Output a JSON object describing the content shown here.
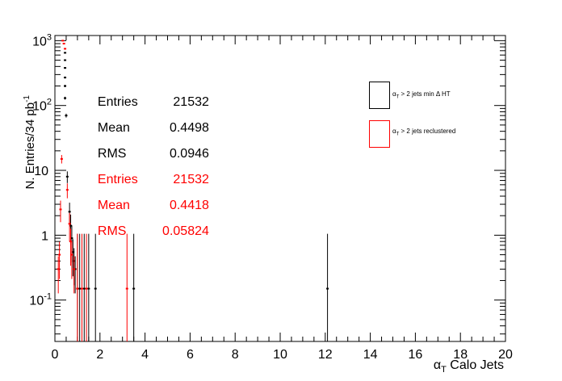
{
  "chart_data": {
    "type": "scatter",
    "xlabel_greek": "α",
    "xlabel_sub": "T",
    "xlabel_rest": " Calo Jets",
    "ylabel": "N. Entries/34 pb",
    "ylabel_sup": "-1",
    "xlim": [
      0,
      20
    ],
    "ylim": [
      0.023,
      1200
    ],
    "yscale": "log",
    "x_ticks": [
      "0",
      "2",
      "4",
      "6",
      "8",
      "10",
      "12",
      "14",
      "16",
      "18",
      "20"
    ],
    "y_ticks": [
      {
        "base": "10",
        "exp": "-1",
        "value": 0.1
      },
      {
        "base": "1",
        "exp": "",
        "value": 1
      },
      {
        "base": "10",
        "exp": "",
        "value": 10
      },
      {
        "base": "10",
        "exp": "2",
        "value": 100
      },
      {
        "base": "10",
        "exp": "3",
        "value": 1000
      }
    ],
    "grid": false,
    "series": [
      {
        "name": "α_T > 2 jets min ΔHT",
        "color": "#000000",
        "points": [
          {
            "x": 0.45,
            "y": 650
          },
          {
            "x": 0.45,
            "y": 500
          },
          {
            "x": 0.45,
            "y": 380
          },
          {
            "x": 0.45,
            "y": 270
          },
          {
            "x": 0.45,
            "y": 200
          },
          {
            "x": 0.45,
            "y": 130
          },
          {
            "x": 0.5,
            "y": 70
          },
          {
            "x": 0.55,
            "y": 8
          },
          {
            "x": 0.65,
            "y": 2.3
          },
          {
            "x": 0.7,
            "y": 1.4
          },
          {
            "x": 0.75,
            "y": 0.9
          },
          {
            "x": 0.8,
            "y": 0.55
          },
          {
            "x": 0.85,
            "y": 0.4
          },
          {
            "x": 0.9,
            "y": 0.3
          },
          {
            "x": 1.0,
            "y": 0.15
          },
          {
            "x": 1.1,
            "y": 0.15
          },
          {
            "x": 1.3,
            "y": 0.15
          },
          {
            "x": 1.5,
            "y": 0.15
          },
          {
            "x": 1.8,
            "y": 0.15
          },
          {
            "x": 3.5,
            "y": 0.15
          },
          {
            "x": 12.1,
            "y": 0.15
          }
        ]
      },
      {
        "name": "α_T > 2 jets reclustered",
        "color": "#ff0000",
        "points": [
          {
            "x": 0.15,
            "y": 0.3
          },
          {
            "x": 0.2,
            "y": 0.5
          },
          {
            "x": 0.25,
            "y": 2.5
          },
          {
            "x": 0.3,
            "y": 15
          },
          {
            "x": 0.35,
            "y": 1000
          },
          {
            "x": 0.4,
            "y": 900
          },
          {
            "x": 0.45,
            "y": 750
          },
          {
            "x": 0.55,
            "y": 5
          },
          {
            "x": 0.65,
            "y": 1.5
          },
          {
            "x": 0.7,
            "y": 0.8
          },
          {
            "x": 0.75,
            "y": 0.5
          },
          {
            "x": 0.85,
            "y": 0.3
          },
          {
            "x": 1.0,
            "y": 0.15
          },
          {
            "x": 1.2,
            "y": 0.15
          },
          {
            "x": 1.4,
            "y": 0.15
          },
          {
            "x": 3.2,
            "y": 0.15
          }
        ]
      }
    ],
    "stats_black": [
      {
        "key": "Entries",
        "value": "21532"
      },
      {
        "key": "Mean",
        "value": "0.4498"
      },
      {
        "key": "RMS",
        "value": "0.0946"
      }
    ],
    "stats_red": [
      {
        "key": "Entries",
        "value": "21532"
      },
      {
        "key": "Mean",
        "value": "0.4418"
      },
      {
        "key": "RMS",
        "value": "0.05824"
      }
    ],
    "legend": [
      {
        "greek": "α",
        "sub": "T",
        "text": " > 2 jets min   Δ HT",
        "color": "#000000"
      },
      {
        "greek": "α",
        "sub": "T",
        "text": " > 2 jets reclustered",
        "color": "#ff0000"
      }
    ],
    "legend_position": "top-right"
  }
}
